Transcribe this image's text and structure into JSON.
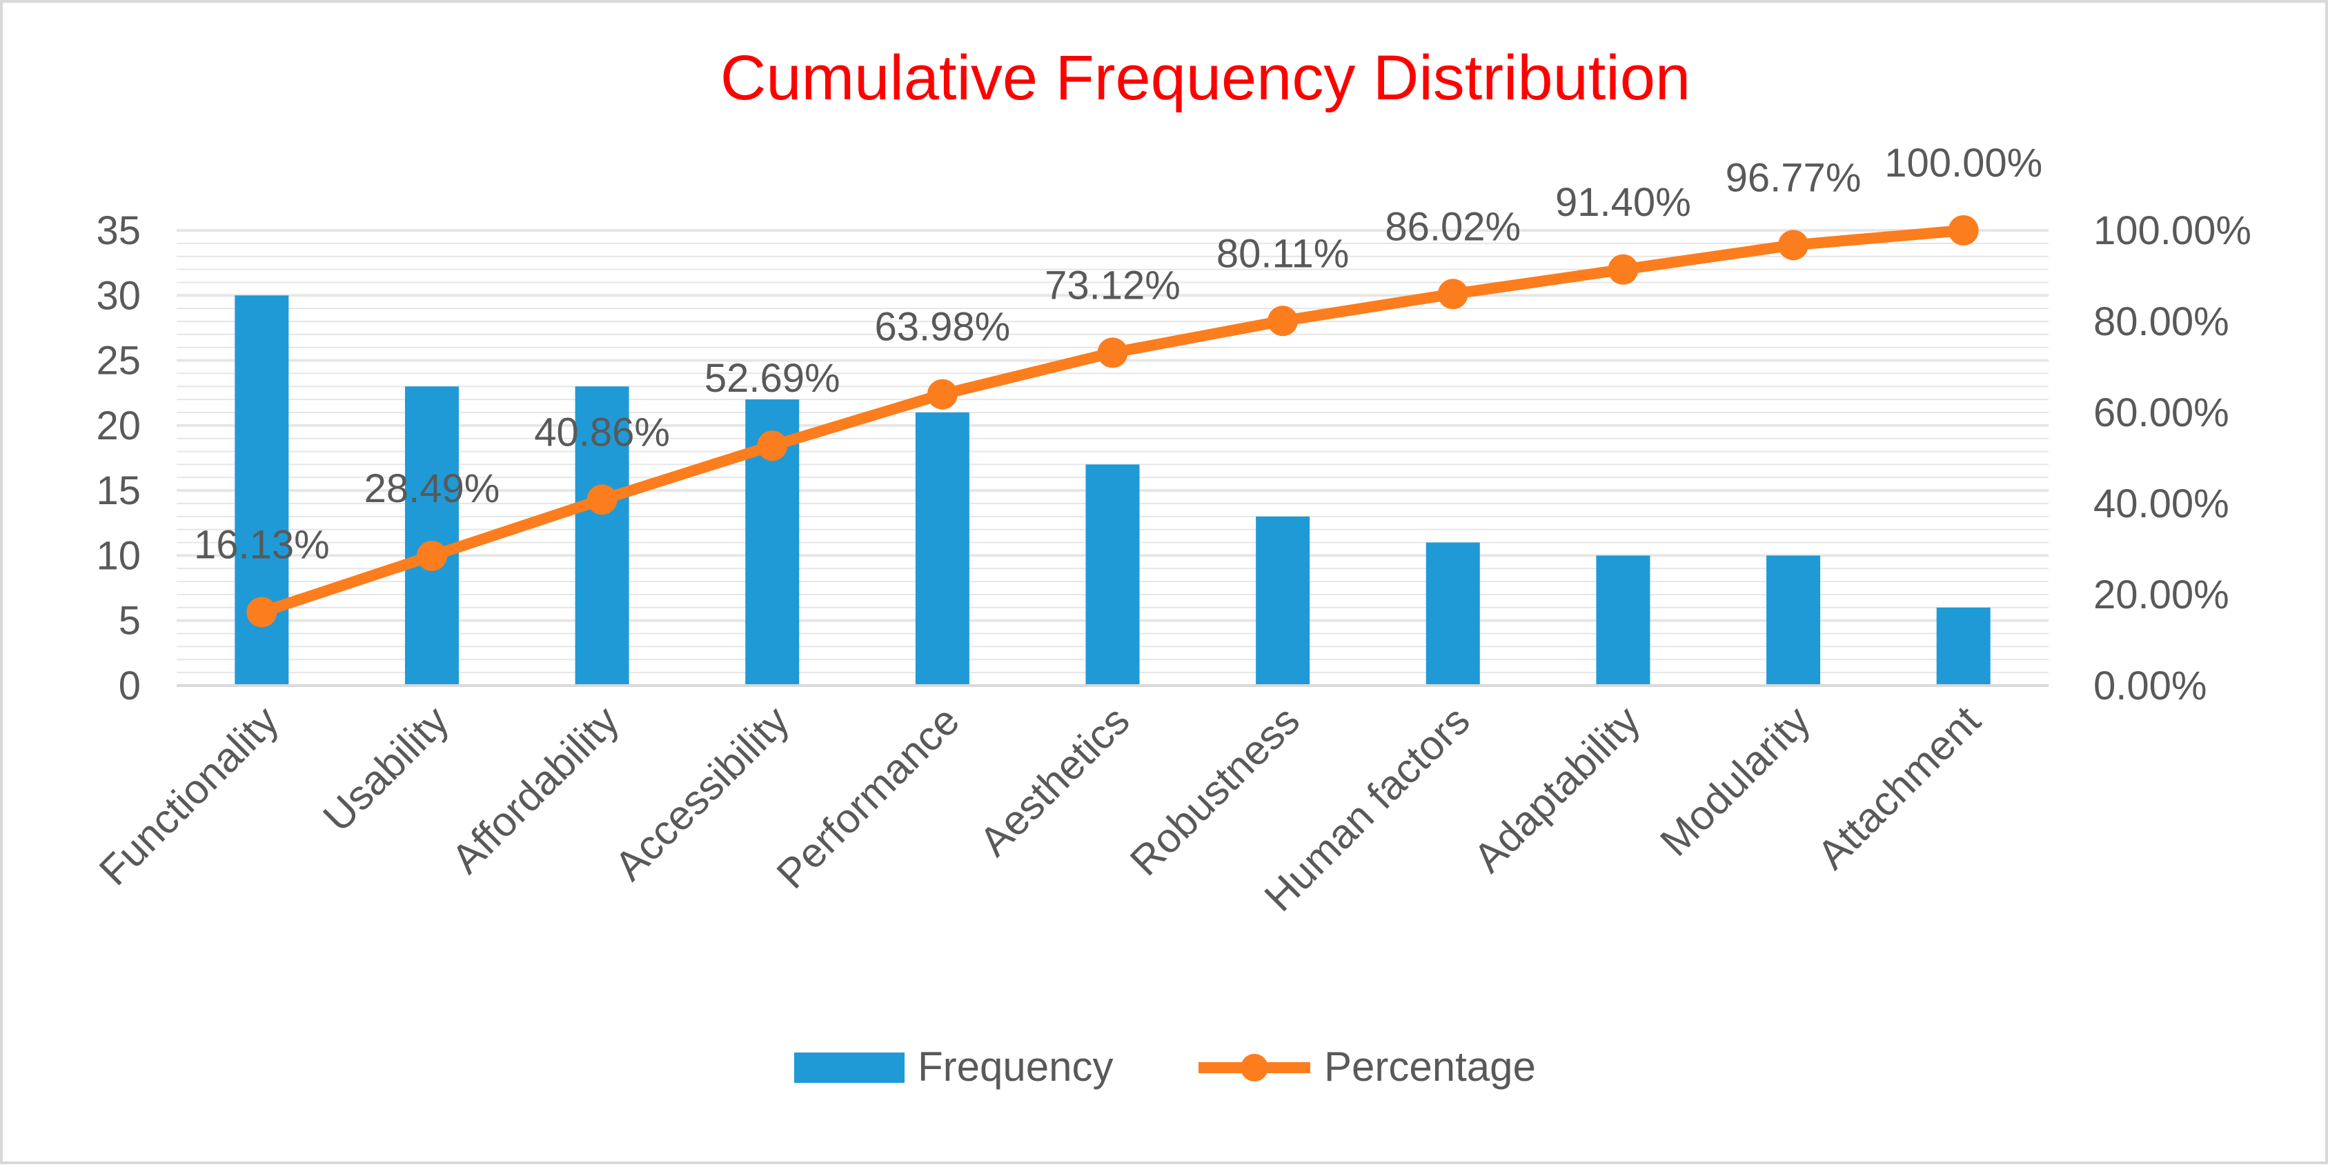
{
  "chart_data": {
    "type": "bar+line",
    "title": "Cumulative Frequency Distribution",
    "categories": [
      "Functionality",
      "Usability",
      "Affordability",
      "Accessibility",
      "Performance",
      "Aesthetics",
      "Robustness",
      "Human factors",
      "Adaptability",
      "Modularity",
      "Attachment"
    ],
    "series": [
      {
        "name": "Frequency",
        "type": "bar",
        "axis": "left",
        "values": [
          30,
          23,
          23,
          22,
          21,
          17,
          13,
          11,
          10,
          10,
          6
        ]
      },
      {
        "name": "Percentage",
        "type": "line",
        "axis": "right",
        "values": [
          16.13,
          28.49,
          40.86,
          52.69,
          63.98,
          73.12,
          80.11,
          86.02,
          91.4,
          96.77,
          100.0
        ],
        "data_labels": [
          "16.13%",
          "28.49%",
          "40.86%",
          "52.69%",
          "63.98%",
          "73.12%",
          "80.11%",
          "86.02%",
          "91.40%",
          "96.77%",
          "100.00%"
        ]
      }
    ],
    "y_left": {
      "min": 0,
      "max": 35,
      "ticks": [
        "0",
        "5",
        "10",
        "15",
        "20",
        "25",
        "30",
        "35"
      ]
    },
    "y_right": {
      "min": 0,
      "max": 100,
      "ticks": [
        "0.00%",
        "20.00%",
        "40.00%",
        "60.00%",
        "80.00%",
        "100.00%"
      ]
    },
    "grid": true,
    "legend_position": "bottom",
    "legend": [
      "Frequency",
      "Percentage"
    ]
  },
  "colors": {
    "title": "#ff0000",
    "bar": "#1f9ad6",
    "line": "#fb7d1e",
    "grid": "#e6e6e6",
    "text": "#595959"
  }
}
